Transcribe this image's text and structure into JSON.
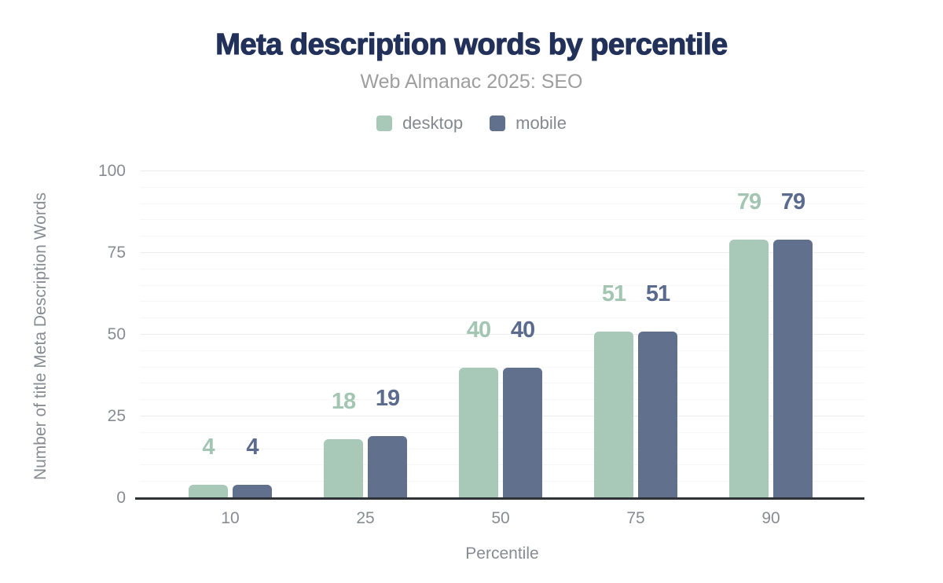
{
  "chart_data": {
    "type": "bar",
    "title": "Meta description words by percentile",
    "subtitle": "Web Almanac 2025: SEO",
    "categories": [
      "10",
      "25",
      "50",
      "75",
      "90"
    ],
    "series": [
      {
        "name": "desktop",
        "color": "#a8c9b8",
        "label_color": "#a3c6b3",
        "values": [
          4,
          18,
          40,
          51,
          79
        ]
      },
      {
        "name": "mobile",
        "color": "#61708c",
        "label_color": "#5b6b8e",
        "values": [
          4,
          19,
          40,
          51,
          79
        ]
      }
    ],
    "xlabel": "Percentile",
    "ylabel": "Number of title Meta Description Words",
    "ylim": [
      0,
      100
    ],
    "yticks": [
      0,
      25,
      50,
      75,
      100
    ],
    "minor_grid_step": 5,
    "grid": "horizontal",
    "legend_position": "top"
  },
  "colors": {
    "title": "#22315a",
    "subtitle": "#9e9e9e",
    "tick_label": "#888c92",
    "axis_line": "#2f3337",
    "major_grid": "#ececec",
    "minor_grid": "#f7f7f7",
    "background": "#ffffff"
  }
}
